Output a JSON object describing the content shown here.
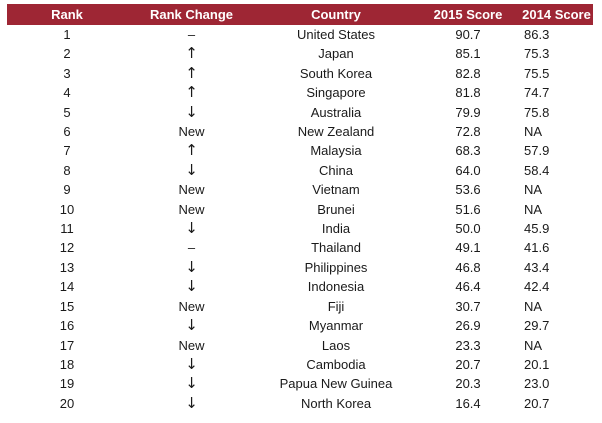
{
  "table": {
    "headers": [
      "Rank",
      "Rank Change",
      "Country",
      "2015 Score",
      "2014 Score"
    ],
    "rows": [
      {
        "rank": "1",
        "change": "–",
        "change_icon": "dash-icon",
        "country": "United States",
        "s2015": "90.7",
        "s2014": "86.3"
      },
      {
        "rank": "2",
        "change": "↑",
        "change_icon": "arrow-up-icon",
        "country": "Japan",
        "s2015": "85.1",
        "s2014": "75.3"
      },
      {
        "rank": "3",
        "change": "↑",
        "change_icon": "arrow-up-icon",
        "country": "South Korea",
        "s2015": "82.8",
        "s2014": "75.5"
      },
      {
        "rank": "4",
        "change": "↑",
        "change_icon": "arrow-up-icon",
        "country": "Singapore",
        "s2015": "81.8",
        "s2014": "74.7"
      },
      {
        "rank": "5",
        "change": "↓",
        "change_icon": "arrow-down-icon",
        "country": "Australia",
        "s2015": "79.9",
        "s2014": "75.8"
      },
      {
        "rank": "6",
        "change": "New",
        "change_icon": "",
        "country": "New Zealand",
        "s2015": "72.8",
        "s2014": "NA"
      },
      {
        "rank": "7",
        "change": "↑",
        "change_icon": "arrow-up-icon",
        "country": "Malaysia",
        "s2015": "68.3",
        "s2014": "57.9"
      },
      {
        "rank": "8",
        "change": "↓",
        "change_icon": "arrow-down-icon",
        "country": "China",
        "s2015": "64.0",
        "s2014": "58.4"
      },
      {
        "rank": "9",
        "change": "New",
        "change_icon": "",
        "country": "Vietnam",
        "s2015": "53.6",
        "s2014": "NA"
      },
      {
        "rank": "10",
        "change": "New",
        "change_icon": "",
        "country": "Brunei",
        "s2015": "51.6",
        "s2014": "NA"
      },
      {
        "rank": "11",
        "change": "↓",
        "change_icon": "arrow-down-icon",
        "country": "India",
        "s2015": "50.0",
        "s2014": "45.9"
      },
      {
        "rank": "12",
        "change": "–",
        "change_icon": "dash-icon",
        "country": "Thailand",
        "s2015": "49.1",
        "s2014": "41.6"
      },
      {
        "rank": "13",
        "change": "↓",
        "change_icon": "arrow-down-icon",
        "country": "Philippines",
        "s2015": "46.8",
        "s2014": "43.4"
      },
      {
        "rank": "14",
        "change": "↓",
        "change_icon": "arrow-down-icon",
        "country": "Indonesia",
        "s2015": "46.4",
        "s2014": "42.4"
      },
      {
        "rank": "15",
        "change": "New",
        "change_icon": "",
        "country": "Fiji",
        "s2015": "30.7",
        "s2014": "NA"
      },
      {
        "rank": "16",
        "change": "↓",
        "change_icon": "arrow-down-icon",
        "country": "Myanmar",
        "s2015": "26.9",
        "s2014": "29.7"
      },
      {
        "rank": "17",
        "change": "New",
        "change_icon": "",
        "country": "Laos",
        "s2015": "23.3",
        "s2014": "NA"
      },
      {
        "rank": "18",
        "change": "↓",
        "change_icon": "arrow-down-icon",
        "country": "Cambodia",
        "s2015": "20.7",
        "s2014": "20.1"
      },
      {
        "rank": "19",
        "change": "↓",
        "change_icon": "arrow-down-icon",
        "country": "Papua New Guinea",
        "s2015": "20.3",
        "s2014": "23.0"
      },
      {
        "rank": "20",
        "change": "↓",
        "change_icon": "arrow-down-icon",
        "country": "North Korea",
        "s2015": "16.4",
        "s2014": "20.7"
      }
    ]
  },
  "colors": {
    "header_background": "#9e2634",
    "header_text": "#ffffff",
    "body_text": "#1a1a1a"
  }
}
